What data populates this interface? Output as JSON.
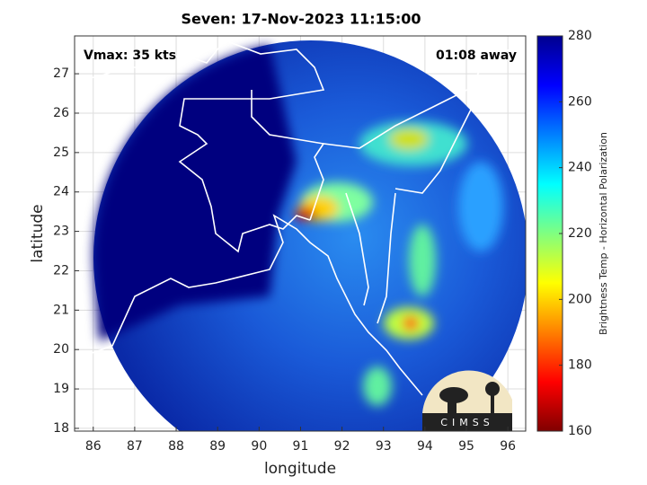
{
  "title": "Seven: 17-Nov-2023 11:15:00",
  "annotations": [
    "Vmax: 35 kts",
    "01:08 away"
  ],
  "xlabel": "longitude",
  "ylabel": "latitude",
  "xlim": [
    85.55,
    96.43
  ],
  "ylim": [
    17.93,
    27.96
  ],
  "xticks": [
    86,
    87,
    88,
    89,
    90,
    91,
    92,
    93,
    94,
    95,
    96
  ],
  "yticks": [
    18,
    19,
    20,
    21,
    22,
    23,
    24,
    25,
    26,
    27
  ],
  "colorbar": {
    "label": "Brightness Temp - Horizontal Polarization",
    "lim": [
      160,
      280
    ],
    "ticks": [
      160,
      180,
      200,
      220,
      240,
      260,
      280
    ]
  },
  "logo": "CIMSS"
}
